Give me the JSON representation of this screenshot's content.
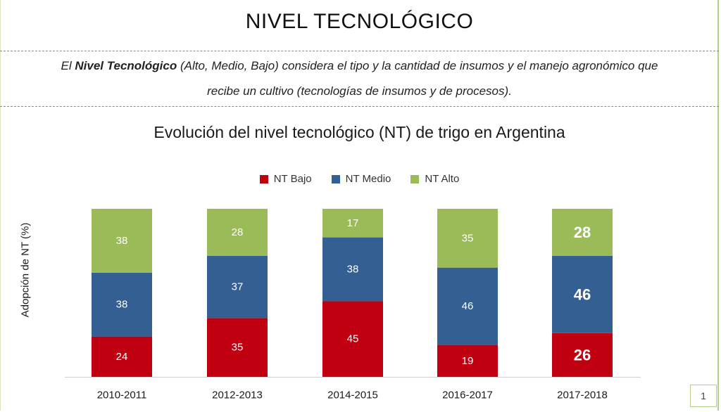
{
  "header": {
    "title": "NIVEL TECNOLÓGICO"
  },
  "description": {
    "prefix": "El ",
    "bold": "Nivel Tecnológico",
    "line1_rest": " (Alto, Medio, Bajo) considera el tipo y la cantidad de insumos y el manejo agronómico que",
    "line2": "recibe un cultivo (tecnologías de insumos y de procesos)."
  },
  "page_number": "1",
  "colors": {
    "bajo": "#c00010",
    "medio": "#335f93",
    "alto": "#9bbb59",
    "label_text": "#ffffff",
    "grid": "#d0d0d0"
  },
  "chart_data": {
    "type": "bar",
    "stacked": true,
    "title": "Evolución del nivel tecnológico (NT) de trigo en Argentina",
    "xlabel": "",
    "ylabel": "Adopción de NT (%)",
    "ylim": [
      0,
      100
    ],
    "legend_position": "top",
    "categories": [
      "2010-2011",
      "2012-2013",
      "2014-2015",
      "2016-2017",
      "2017-2018"
    ],
    "series": [
      {
        "name": "NT Bajo",
        "color": "#c00010",
        "values": [
          24,
          35,
          45,
          19,
          26
        ]
      },
      {
        "name": "NT Medio",
        "color": "#335f93",
        "values": [
          38,
          37,
          38,
          46,
          46
        ]
      },
      {
        "name": "NT Alto",
        "color": "#9bbb59",
        "values": [
          38,
          28,
          17,
          35,
          28
        ]
      }
    ],
    "emphasized_category": "2017-2018"
  }
}
